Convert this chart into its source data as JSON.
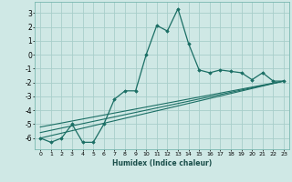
{
  "xlabel": "Humidex (Indice chaleur)",
  "xlim": [
    -0.5,
    23.5
  ],
  "ylim": [
    -6.8,
    3.8
  ],
  "yticks": [
    3,
    2,
    1,
    0,
    -1,
    -2,
    -3,
    -4,
    -5,
    -6
  ],
  "xticks": [
    0,
    1,
    2,
    3,
    4,
    5,
    6,
    7,
    8,
    9,
    10,
    11,
    12,
    13,
    14,
    15,
    16,
    17,
    18,
    19,
    20,
    21,
    22,
    23
  ],
  "background_color": "#cfe8e5",
  "grid_color": "#a8ceca",
  "line_color": "#1a6e64",
  "series_main": {
    "x": [
      0,
      1,
      2,
      3,
      4,
      5,
      6,
      7,
      8,
      9,
      10,
      11,
      12,
      13,
      14,
      15,
      16,
      17,
      18,
      19,
      20,
      21,
      22,
      23
    ],
    "y": [
      -6.0,
      -6.3,
      -6.0,
      -5.0,
      -6.3,
      -6.3,
      -5.0,
      -3.2,
      -2.6,
      -2.6,
      0.0,
      2.1,
      1.7,
      3.3,
      0.8,
      -1.1,
      -1.3,
      -1.1,
      -1.2,
      -1.3,
      -1.8,
      -1.3,
      -1.9,
      -1.9
    ]
  },
  "series_lines": [
    {
      "x": [
        0,
        23
      ],
      "y": [
        -6.0,
        -1.9
      ]
    },
    {
      "x": [
        0,
        23
      ],
      "y": [
        -5.6,
        -1.9
      ]
    },
    {
      "x": [
        0,
        23
      ],
      "y": [
        -5.2,
        -1.9
      ]
    }
  ]
}
